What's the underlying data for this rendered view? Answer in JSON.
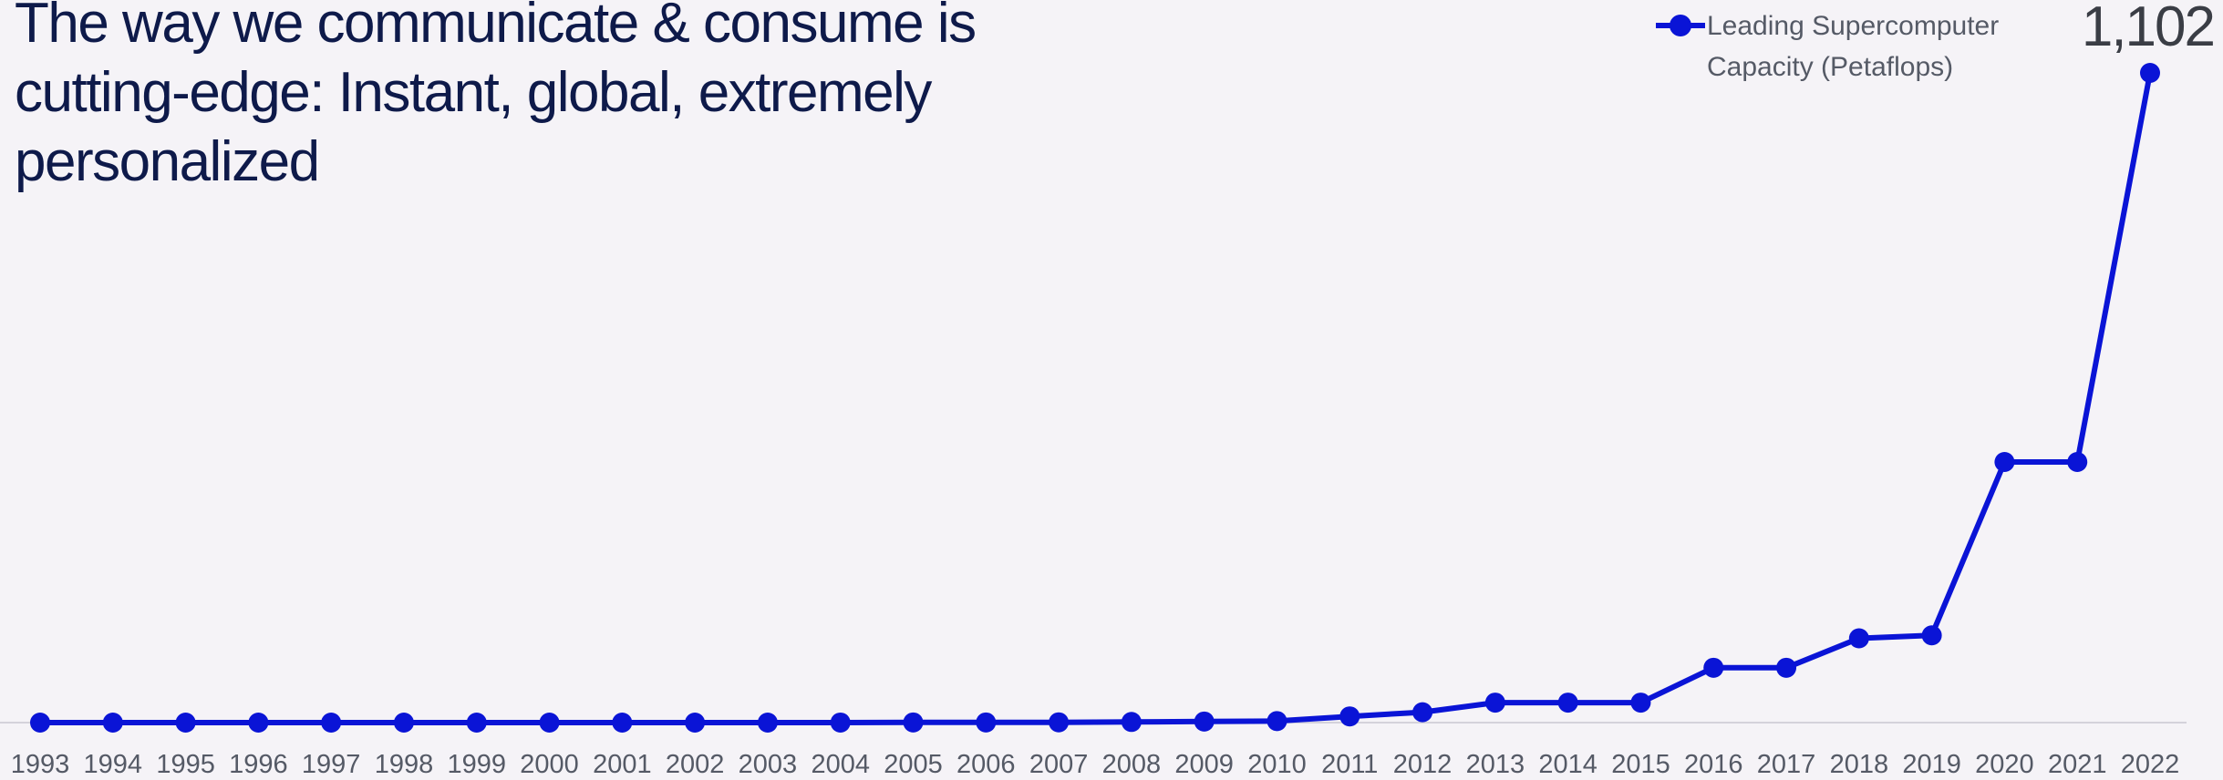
{
  "chart_data": {
    "type": "line",
    "title": "The way we communicate & consume is cutting-edge: Instant, global, extremely personalized",
    "categories": [
      "1993",
      "1994",
      "1995",
      "1996",
      "1997",
      "1998",
      "1999",
      "2000",
      "2001",
      "2002",
      "2003",
      "2004",
      "2005",
      "2006",
      "2007",
      "2008",
      "2009",
      "2010",
      "2011",
      "2012",
      "2013",
      "2014",
      "2015",
      "2016",
      "2017",
      "2018",
      "2019",
      "2020",
      "2021",
      "2022"
    ],
    "series": [
      {
        "name": "Leading Supercomputer Capacity (Petaflops)",
        "values": [
          6e-05,
          0.00014,
          0.00017,
          0.00037,
          0.0011,
          0.0013,
          0.0023,
          0.0049,
          0.0072,
          0.036,
          0.036,
          0.07,
          0.28,
          0.28,
          0.48,
          1.1,
          1.8,
          2.6,
          10.5,
          17.6,
          33.9,
          33.9,
          33.9,
          93,
          93,
          143,
          148,
          442,
          442,
          1102
        ]
      }
    ],
    "data_labels": [
      {
        "category": "2022",
        "text": "1,102"
      }
    ],
    "ylim": [
      0,
      1120
    ],
    "color": "#0a14d6",
    "legend_position": "top-right",
    "grid": false
  }
}
